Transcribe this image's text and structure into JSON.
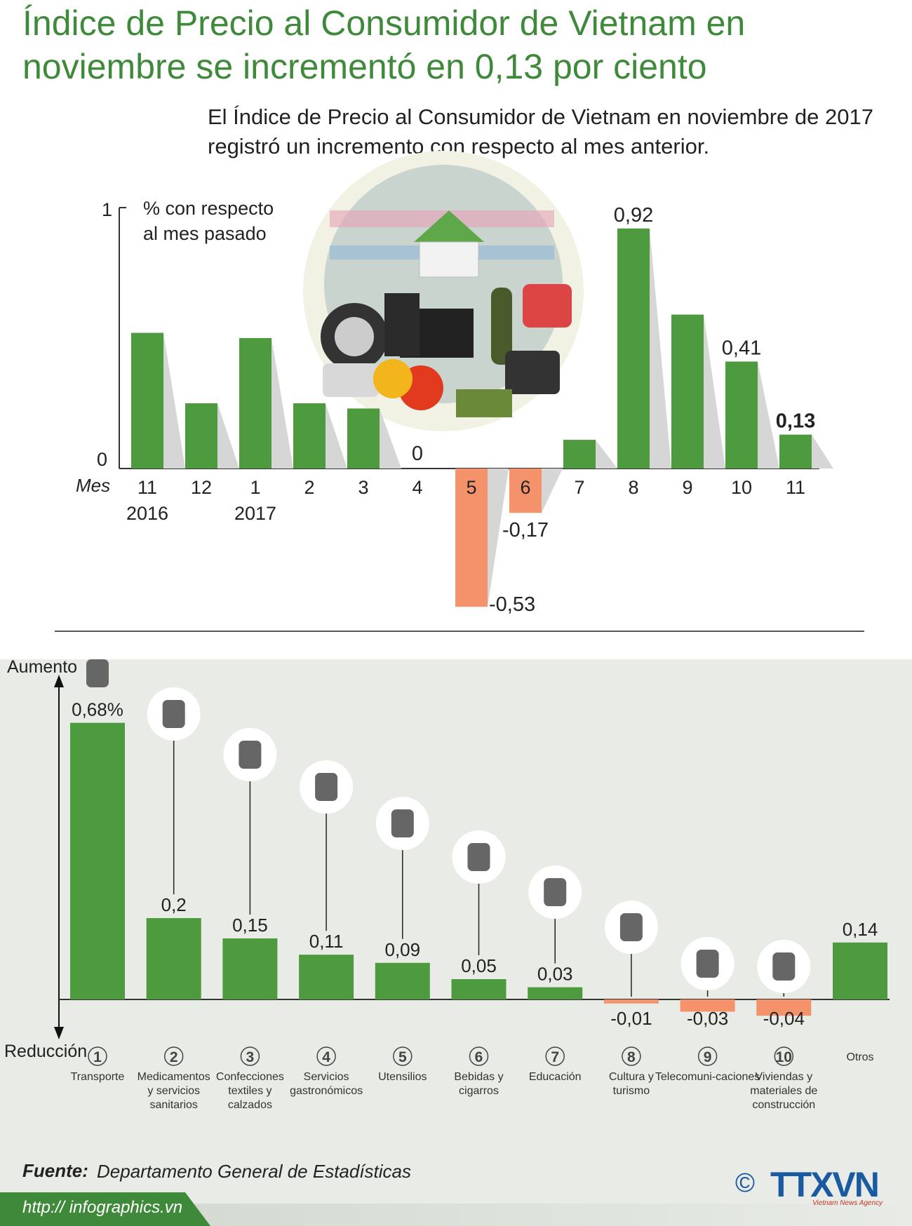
{
  "title": "Índice de Precio al Consumidor de Vietnam en noviembre se incrementó en 0,13 por ciento",
  "subtitle": "El Índice de Precio al Consumidor de Vietnam en noviembre de 2017 registró un incremento con respecto al mes anterior.",
  "colors": {
    "title": "#3f8a3a",
    "positive_bar": "#4e9a3e",
    "negative_bar": "#f4926b",
    "axis": "#333333",
    "bottom_background": "#e8ebe6"
  },
  "illustration": {
    "description_icons": [
      "house-icon",
      "tire-icon",
      "computer-icon",
      "tv-icon",
      "bottle-icon",
      "telephone-icon",
      "pills-icon",
      "vegetables-icon",
      "books-icon"
    ]
  },
  "chart_data": [
    {
      "type": "bar",
      "unit_label": "% con respecto al mes pasado",
      "x_axis_label": "Mes",
      "ylim": [
        -0.53,
        1
      ],
      "y_ticks": [
        "0",
        "1"
      ],
      "categories": [
        {
          "month": "11",
          "year": "2016"
        },
        {
          "month": "12",
          "year": ""
        },
        {
          "month": "1",
          "year": "2017"
        },
        {
          "month": "2",
          "year": ""
        },
        {
          "month": "3",
          "year": ""
        },
        {
          "month": "4",
          "year": ""
        },
        {
          "month": "5",
          "year": ""
        },
        {
          "month": "6",
          "year": ""
        },
        {
          "month": "7",
          "year": ""
        },
        {
          "month": "8",
          "year": ""
        },
        {
          "month": "9",
          "year": ""
        },
        {
          "month": "10",
          "year": ""
        },
        {
          "month": "11",
          "year": ""
        }
      ],
      "values": [
        0.52,
        0.25,
        0.5,
        0.25,
        0.23,
        0,
        -0.53,
        -0.17,
        0.11,
        0.92,
        0.59,
        0.41,
        0.13
      ],
      "data_labels": [
        "",
        "",
        "",
        "",
        "",
        "0",
        "-0,53",
        "-0,17",
        "",
        "0,92",
        "",
        "0,41",
        "0,13"
      ],
      "highlight_index": 12
    },
    {
      "type": "bar",
      "y_axis_top_label": "Aumento",
      "y_axis_bottom_label": "Reducción",
      "categories": [
        {
          "number": "1",
          "label": "Transporte",
          "icon": "traffic-light-icon"
        },
        {
          "number": "2",
          "label": "Medicamentos y servicios sanitarios",
          "icon": "pills-icon"
        },
        {
          "number": "3",
          "label": "Confecciones textiles y calzados",
          "icon": "clothes-icon"
        },
        {
          "number": "4",
          "label": "Servicios gastronómicos",
          "icon": "food-cloche-icon"
        },
        {
          "number": "5",
          "label": "Utensilios",
          "icon": "washing-machine-icon"
        },
        {
          "number": "6",
          "label": "Bebidas y cigarros",
          "icon": "bottle-cigarette-icon"
        },
        {
          "number": "7",
          "label": "Educación",
          "icon": "graduation-cap-icon"
        },
        {
          "number": "8",
          "label": "Cultura y turismo",
          "icon": "theater-masks-icon"
        },
        {
          "number": "9",
          "label": "Telecomuni-caciones",
          "icon": "antenna-tower-icon"
        },
        {
          "number": "10",
          "label": "Viviendas y materiales de construcción",
          "icon": "house-icon"
        },
        {
          "number": "",
          "label": "Otros",
          "icon": ""
        }
      ],
      "values": [
        0.68,
        0.2,
        0.15,
        0.11,
        0.09,
        0.05,
        0.03,
        -0.01,
        -0.03,
        -0.04,
        0.14
      ],
      "data_labels": [
        "0,68%",
        "0,2",
        "0,15",
        "0,11",
        "0,09",
        "0,05",
        "0,03",
        "-0,01",
        "-0,03",
        "-0,04",
        "0,14"
      ]
    }
  ],
  "source": {
    "label": "Fuente:",
    "text": "Departamento General de Estadísticas"
  },
  "url": "http:// infographics.vn",
  "copyright": "©",
  "logo": {
    "text": "TTXVN",
    "subtitle": "Vietnam News Agency"
  }
}
